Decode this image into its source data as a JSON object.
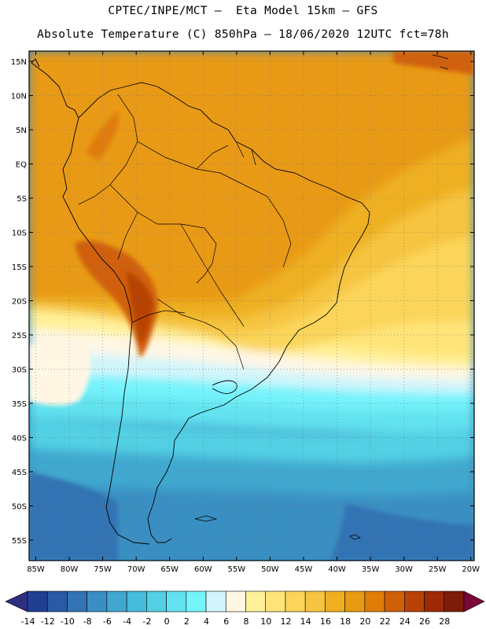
{
  "title": {
    "line1": "CPTEC/INPE/MCT –  Eta Model 15km – GFS",
    "line2": "Absolute Temperature (C) 850hPa – 18/06/2020 12UTC fct=78h"
  },
  "map": {
    "region": "South America",
    "projection": "lat-lon",
    "lon_range": [
      -86,
      -19.5
    ],
    "lat_range": [
      -58,
      16.5
    ],
    "lat_labels": [
      "15N",
      "10N",
      "5N",
      "EQ",
      "5S",
      "10S",
      "15S",
      "20S",
      "25S",
      "30S",
      "35S",
      "40S",
      "45S",
      "50S",
      "55S"
    ],
    "lat_values": [
      15,
      10,
      5,
      0,
      -5,
      -10,
      -15,
      -20,
      -25,
      -30,
      -35,
      -40,
      -45,
      -50,
      -55
    ],
    "lon_labels": [
      "85W",
      "80W",
      "75W",
      "70W",
      "65W",
      "60W",
      "55W",
      "50W",
      "45W",
      "40W",
      "35W",
      "30W",
      "25W",
      "20W"
    ],
    "lon_values": [
      -85,
      -80,
      -75,
      -70,
      -65,
      -60,
      -55,
      -50,
      -45,
      -40,
      -35,
      -30,
      -25,
      -20
    ],
    "gridlines": "dotted"
  },
  "colorbar": {
    "unit": "C",
    "labels": [
      "-14",
      "-12",
      "-10",
      "-8",
      "-6",
      "-4",
      "-2",
      "0",
      "2",
      "4",
      "6",
      "8",
      "10",
      "12",
      "14",
      "16",
      "18",
      "20",
      "22",
      "24",
      "26",
      "28"
    ],
    "colors": [
      "#1f3f93",
      "#2a5aa5",
      "#3373b3",
      "#3a8fc2",
      "#40a8cf",
      "#45bcd9",
      "#52d0e4",
      "#62e2ef",
      "#74f3fb",
      "#d2f5fb",
      "#fff7e4",
      "#fff19a",
      "#ffe579",
      "#fbd55a",
      "#f6c43f",
      "#eeb021",
      "#e89a12",
      "#e07c08",
      "#d06008",
      "#b84206",
      "#9d2a05",
      "#7d1c08"
    ],
    "under_color": "#2f2f80",
    "over_color": "#7a0838"
  }
}
